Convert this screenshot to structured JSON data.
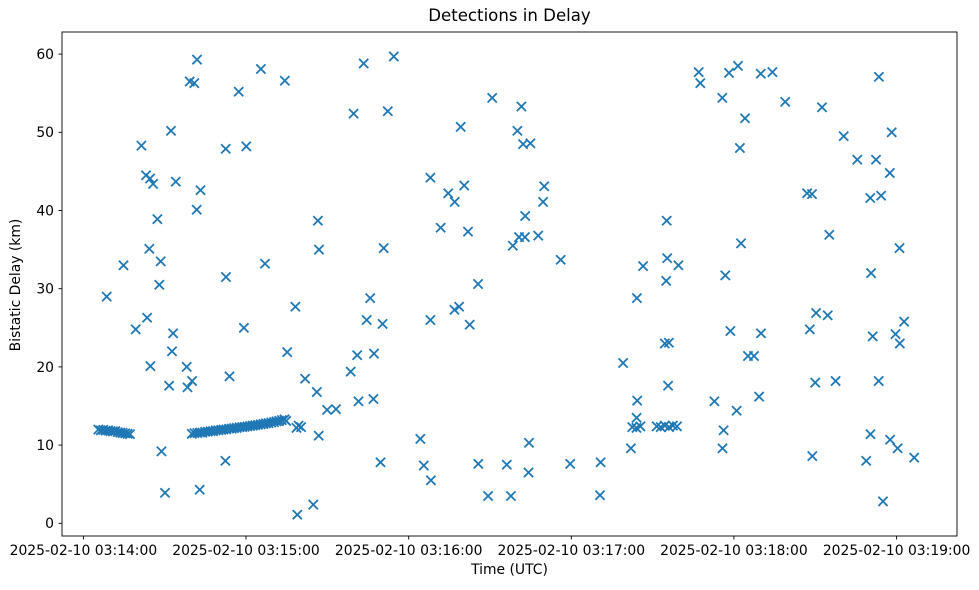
{
  "chart_data": {
    "type": "scatter",
    "title": "Detections in Delay",
    "xlabel": "Time (UTC)",
    "ylabel": "Bistatic Delay (km)",
    "legend": null,
    "grid": false,
    "marker": "x",
    "marker_color": "#1f77b4",
    "spine_color": "#000000",
    "text_color": "#000000",
    "x_unit": "seconds after 2025-02-10 03:14:00 UTC",
    "xlim": [
      -7.9,
      322.3
    ],
    "ylim": [
      -1.62,
      62.83
    ],
    "x_ticks": [
      {
        "t": 0,
        "label": "2025-02-10 03:14:00"
      },
      {
        "t": 60,
        "label": "2025-02-10 03:15:00"
      },
      {
        "t": 120,
        "label": "2025-02-10 03:16:00"
      },
      {
        "t": 180,
        "label": "2025-02-10 03:17:00"
      },
      {
        "t": 240,
        "label": "2025-02-10 03:18:00"
      },
      {
        "t": 300,
        "label": "2025-02-10 03:19:00"
      }
    ],
    "y_ticks": [
      0,
      10,
      20,
      30,
      40,
      50,
      60
    ],
    "points": [
      [
        5.5,
        12.0
      ],
      [
        6.4,
        11.9
      ],
      [
        7.3,
        11.95
      ],
      [
        8.2,
        11.85
      ],
      [
        8.6,
        29.0
      ],
      [
        9.1,
        11.9
      ],
      [
        10.0,
        11.8
      ],
      [
        10.9,
        11.75
      ],
      [
        11.8,
        11.8
      ],
      [
        12.7,
        11.65
      ],
      [
        13.6,
        11.6
      ],
      [
        14.5,
        11.55
      ],
      [
        14.8,
        33.0
      ],
      [
        15.4,
        11.5
      ],
      [
        16.3,
        11.45
      ],
      [
        17.2,
        11.4
      ],
      [
        19.3,
        24.8
      ],
      [
        21.4,
        48.3
      ],
      [
        23.1,
        44.5
      ],
      [
        23.5,
        26.3
      ],
      [
        24.3,
        35.1
      ],
      [
        24.6,
        44.1
      ],
      [
        24.7,
        20.1
      ],
      [
        25.7,
        43.4
      ],
      [
        27.3,
        38.9
      ],
      [
        28.0,
        30.5
      ],
      [
        28.5,
        33.5
      ],
      [
        28.8,
        9.2
      ],
      [
        30.1,
        3.9
      ],
      [
        31.6,
        17.6
      ],
      [
        32.3,
        50.2
      ],
      [
        32.7,
        22.0
      ],
      [
        33.1,
        24.3
      ],
      [
        34.1,
        43.7
      ],
      [
        38.1,
        20.0
      ],
      [
        38.4,
        17.4
      ],
      [
        39.2,
        56.5
      ],
      [
        40.0,
        11.45
      ],
      [
        40.1,
        18.2
      ],
      [
        40.9,
        56.3
      ],
      [
        41.0,
        11.52
      ],
      [
        41.8,
        40.1
      ],
      [
        41.9,
        59.3
      ],
      [
        42.0,
        11.55
      ],
      [
        42.9,
        4.3
      ],
      [
        43.0,
        11.62
      ],
      [
        43.2,
        42.6
      ],
      [
        43.9,
        11.6
      ],
      [
        44.9,
        11.7
      ],
      [
        45.9,
        11.72
      ],
      [
        46.9,
        11.78
      ],
      [
        47.8,
        11.8
      ],
      [
        48.8,
        11.88
      ],
      [
        49.8,
        11.9
      ],
      [
        50.8,
        11.95
      ],
      [
        51.7,
        12.0
      ],
      [
        52.4,
        8.0
      ],
      [
        52.5,
        47.9
      ],
      [
        52.6,
        31.5
      ],
      [
        52.7,
        12.02
      ],
      [
        53.7,
        12.1
      ],
      [
        53.9,
        18.8
      ],
      [
        54.7,
        12.12
      ],
      [
        55.6,
        12.18
      ],
      [
        56.6,
        12.2
      ],
      [
        57.3,
        55.2
      ],
      [
        57.6,
        12.28
      ],
      [
        58.6,
        12.3
      ],
      [
        59.2,
        25.0
      ],
      [
        59.5,
        12.35
      ],
      [
        60.1,
        48.2
      ],
      [
        60.5,
        12.4
      ],
      [
        61.5,
        12.45
      ],
      [
        62.5,
        12.5
      ],
      [
        63.4,
        12.55
      ],
      [
        64.4,
        12.6
      ],
      [
        65.4,
        12.65
      ],
      [
        65.5,
        58.1
      ],
      [
        66.4,
        12.7
      ],
      [
        67.0,
        33.2
      ],
      [
        67.3,
        12.78
      ],
      [
        68.3,
        12.82
      ],
      [
        69.3,
        12.9
      ],
      [
        70.3,
        12.95
      ],
      [
        71.2,
        13.05
      ],
      [
        72.2,
        13.1
      ],
      [
        73.2,
        13.2
      ],
      [
        74.2,
        13.3
      ],
      [
        74.3,
        56.6
      ],
      [
        74.8,
        13.1
      ],
      [
        75.2,
        21.9
      ],
      [
        78.2,
        27.7
      ],
      [
        78.6,
        12.2
      ],
      [
        78.9,
        1.1
      ],
      [
        79.4,
        12.5
      ],
      [
        80.3,
        12.3
      ],
      [
        81.8,
        18.5
      ],
      [
        84.8,
        2.4
      ],
      [
        86.1,
        16.8
      ],
      [
        86.5,
        38.7
      ],
      [
        86.8,
        11.2
      ],
      [
        86.9,
        35.0
      ],
      [
        89.9,
        14.5
      ],
      [
        93.2,
        14.6
      ],
      [
        98.6,
        19.4
      ],
      [
        99.7,
        52.4
      ],
      [
        101.0,
        21.5
      ],
      [
        101.5,
        15.6
      ],
      [
        103.4,
        58.8
      ],
      [
        104.5,
        26.0
      ],
      [
        105.8,
        28.8
      ],
      [
        107.0,
        15.9
      ],
      [
        107.2,
        21.7
      ],
      [
        109.6,
        7.8
      ],
      [
        110.4,
        25.5
      ],
      [
        110.8,
        35.2
      ],
      [
        112.3,
        52.7
      ],
      [
        114.5,
        59.7
      ],
      [
        124.3,
        10.8
      ],
      [
        125.6,
        7.4
      ],
      [
        128.0,
        26.0
      ],
      [
        128.0,
        44.2
      ],
      [
        128.2,
        5.5
      ],
      [
        131.8,
        37.8
      ],
      [
        134.6,
        42.2
      ],
      [
        136.9,
        27.3
      ],
      [
        137.0,
        41.1
      ],
      [
        138.6,
        27.7
      ],
      [
        139.2,
        50.7
      ],
      [
        140.5,
        43.2
      ],
      [
        141.9,
        37.3
      ],
      [
        142.5,
        25.4
      ],
      [
        145.6,
        30.6
      ],
      [
        145.7,
        7.6
      ],
      [
        149.3,
        3.5
      ],
      [
        150.8,
        54.4
      ],
      [
        156.2,
        7.5
      ],
      [
        157.7,
        3.5
      ],
      [
        158.4,
        35.5
      ],
      [
        160.1,
        50.2
      ],
      [
        160.7,
        36.6
      ],
      [
        161.6,
        53.3
      ],
      [
        162.2,
        48.5
      ],
      [
        162.9,
        36.6
      ],
      [
        163.0,
        39.3
      ],
      [
        164.2,
        6.5
      ],
      [
        164.4,
        10.3
      ],
      [
        164.9,
        48.6
      ],
      [
        167.8,
        36.8
      ],
      [
        169.6,
        41.1
      ],
      [
        170.0,
        43.1
      ],
      [
        176.1,
        33.7
      ],
      [
        179.6,
        7.6
      ],
      [
        190.6,
        3.6
      ],
      [
        190.8,
        7.8
      ],
      [
        199.1,
        20.5
      ],
      [
        202.0,
        9.6
      ],
      [
        202.5,
        12.3
      ],
      [
        204.0,
        12.2
      ],
      [
        204.1,
        13.5
      ],
      [
        204.2,
        28.8
      ],
      [
        204.3,
        15.7
      ],
      [
        205.5,
        12.4
      ],
      [
        206.5,
        32.9
      ],
      [
        211.5,
        12.4
      ],
      [
        213.0,
        12.3
      ],
      [
        214.5,
        12.5
      ],
      [
        214.5,
        23.0
      ],
      [
        215.0,
        31.0
      ],
      [
        215.2,
        38.7
      ],
      [
        215.4,
        33.9
      ],
      [
        215.7,
        17.6
      ],
      [
        216.0,
        23.1
      ],
      [
        216.1,
        12.3
      ],
      [
        217.5,
        12.5
      ],
      [
        219.0,
        12.4
      ],
      [
        219.5,
        33.0
      ],
      [
        227.0,
        57.7
      ],
      [
        227.6,
        56.3
      ],
      [
        232.8,
        15.6
      ],
      [
        235.7,
        54.4
      ],
      [
        235.8,
        9.6
      ],
      [
        236.2,
        11.9
      ],
      [
        236.8,
        31.7
      ],
      [
        238.2,
        57.6
      ],
      [
        238.7,
        24.6
      ],
      [
        241.0,
        14.4
      ],
      [
        241.5,
        58.5
      ],
      [
        242.2,
        48.0
      ],
      [
        242.6,
        35.8
      ],
      [
        244.1,
        51.8
      ],
      [
        245.2,
        21.4
      ],
      [
        247.4,
        21.4
      ],
      [
        249.3,
        16.2
      ],
      [
        249.9,
        57.5
      ],
      [
        250.0,
        24.3
      ],
      [
        254.2,
        57.7
      ],
      [
        258.9,
        53.9
      ],
      [
        267.0,
        42.2
      ],
      [
        268.0,
        24.8
      ],
      [
        268.8,
        42.1
      ],
      [
        268.9,
        8.6
      ],
      [
        270.0,
        18.0
      ],
      [
        270.3,
        26.9
      ],
      [
        272.5,
        53.2
      ],
      [
        274.6,
        26.6
      ],
      [
        275.2,
        36.9
      ],
      [
        277.5,
        18.2
      ],
      [
        280.5,
        49.5
      ],
      [
        285.5,
        46.5
      ],
      [
        288.8,
        8.0
      ],
      [
        290.3,
        41.6
      ],
      [
        290.4,
        11.4
      ],
      [
        290.6,
        32.0
      ],
      [
        291.2,
        23.9
      ],
      [
        292.4,
        46.5
      ],
      [
        293.4,
        18.2
      ],
      [
        293.5,
        57.1
      ],
      [
        294.3,
        41.9
      ],
      [
        295.0,
        2.8
      ],
      [
        297.5,
        44.8
      ],
      [
        297.6,
        10.7
      ],
      [
        298.2,
        50.0
      ],
      [
        299.6,
        24.2
      ],
      [
        300.4,
        9.6
      ],
      [
        301.1,
        35.2
      ],
      [
        301.2,
        23.0
      ],
      [
        302.8,
        25.8
      ],
      [
        306.5,
        8.4
      ]
    ]
  }
}
